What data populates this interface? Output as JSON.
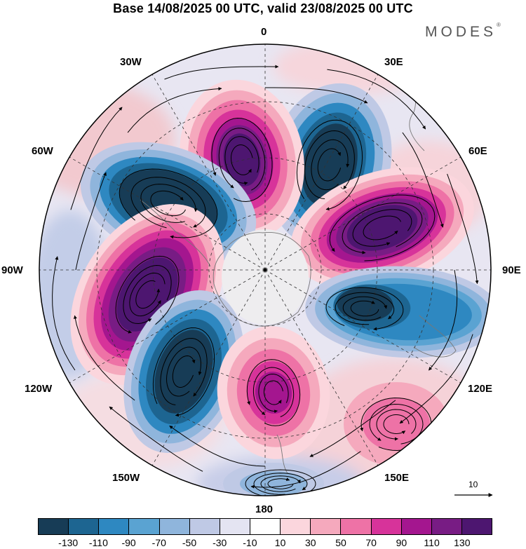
{
  "title": "Base 14/08/2025 00 UTC, valid 23/08/2025 00 UTC",
  "brand": "MODES",
  "brand_mark": "®",
  "reference_vector_label": "10",
  "projection": "south polar stereographic",
  "longitude_labels": [
    {
      "id": "0",
      "text": "0"
    },
    {
      "id": "30e",
      "text": "30E"
    },
    {
      "id": "60e",
      "text": "60E"
    },
    {
      "id": "90e",
      "text": "90E"
    },
    {
      "id": "120e",
      "text": "120E"
    },
    {
      "id": "150e",
      "text": "150E"
    },
    {
      "id": "180",
      "text": "180"
    },
    {
      "id": "150w",
      "text": "150W"
    },
    {
      "id": "120w",
      "text": "120W"
    },
    {
      "id": "90w",
      "text": "90W"
    },
    {
      "id": "60w",
      "text": "60W"
    },
    {
      "id": "30w",
      "text": "30W"
    }
  ],
  "colorbar": {
    "colors": [
      "#173c56",
      "#1d6591",
      "#2e88c1",
      "#5aa3d2",
      "#8fb5dc",
      "#bfc9e5",
      "#e4e4f2",
      "#ffffff",
      "#fbd6dd",
      "#f5a9bd",
      "#ee72a6",
      "#d7339a",
      "#a4168f",
      "#781c84",
      "#4d1670"
    ],
    "ticks": [
      "-130",
      "-110",
      "-90",
      "-70",
      "-50",
      "-30",
      "-10",
      "10",
      "30",
      "50",
      "70",
      "90",
      "110",
      "130"
    ]
  },
  "anomaly_centers": [
    {
      "name": "negative-0",
      "lon": 20,
      "value": -130
    },
    {
      "name": "positive-30",
      "lon": 58,
      "value": 130
    },
    {
      "name": "negative-60",
      "lon": 100,
      "value": -110
    },
    {
      "name": "positive-90",
      "lon": 140,
      "value": 50
    },
    {
      "name": "positive-120",
      "lon": 175,
      "value": 90
    },
    {
      "name": "negative-150",
      "lon": -148,
      "value": -130
    },
    {
      "name": "positive-180",
      "lon": -108,
      "value": 130
    },
    {
      "name": "negative-210",
      "lon": -60,
      "value": -130
    },
    {
      "name": "positive-240",
      "lon": -10,
      "value": 130
    }
  ]
}
